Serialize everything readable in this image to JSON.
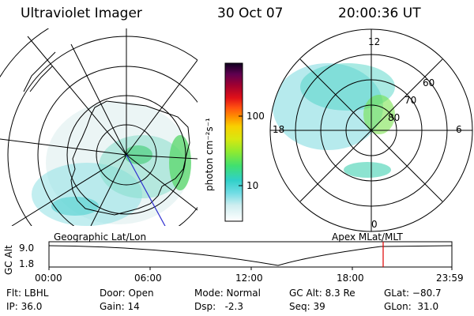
{
  "header": {
    "title": "Ultraviolet Imager",
    "date": "30 Oct 07",
    "time": "20:00:36 UT"
  },
  "left_map": {
    "caption": "Geographic Lat/Lon"
  },
  "right_map": {
    "caption": "Apex MLat/MLT",
    "mlt_labels": {
      "top": "12",
      "bottom": "0",
      "left": "18",
      "right": "6"
    },
    "lat_labels": [
      "60",
      "70",
      "80"
    ]
  },
  "colorbar": {
    "unit_label": "photon cm⁻²s⁻¹",
    "tick_100": "100",
    "tick_10": "10",
    "colors": [
      "#ffffff",
      "#d8eef0",
      "#9fe0e8",
      "#40d0d8",
      "#30d8a0",
      "#40e060",
      "#90ea30",
      "#d0e810",
      "#f8e000",
      "#ffa000",
      "#ff5000",
      "#e81010",
      "#b00020",
      "#800040",
      "#400050",
      "#100030"
    ]
  },
  "timeline": {
    "axis_label": "GC Alt",
    "y_ticks": [
      "9.0",
      "1.8"
    ],
    "x_ticks": [
      "00:00",
      "06:00",
      "12:00",
      "18:00",
      "23:59"
    ],
    "marker_color": "#e00000"
  },
  "info": {
    "flt": "Flt: LBHL",
    "ip": "IP: 36.0",
    "door": "Door: Open",
    "gain": "Gain: 14",
    "mode": "Mode: Normal",
    "dsp": "Dsp:   -2.3",
    "gcalt": "GC Alt: 8.3 Re",
    "seq": "Seq: 39",
    "glat": "GLat: −80.7",
    "glon": "GLon:  31.0"
  }
}
